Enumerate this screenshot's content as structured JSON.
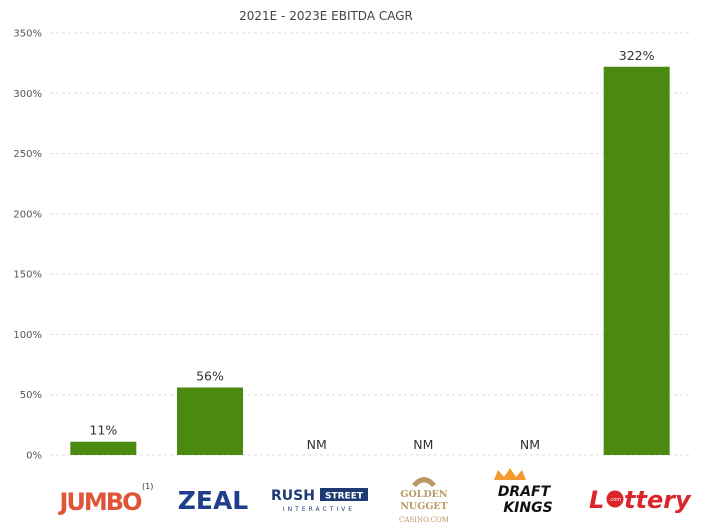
{
  "chart_data": {
    "type": "bar",
    "title": "2021E - 2023E EBITDA CAGR",
    "categories": [
      "Jumbo",
      "ZEAL",
      "Rush Street Interactive",
      "Golden Nugget Casino.com",
      "DraftKings",
      "Lottery.com"
    ],
    "values": [
      11,
      56,
      null,
      null,
      null,
      322
    ],
    "data_labels": [
      "11%",
      "56%",
      "NM",
      "NM",
      "NM",
      "322%"
    ],
    "ylim": [
      0,
      350
    ],
    "yticks": [
      0,
      50,
      100,
      150,
      200,
      250,
      300,
      350
    ],
    "ytick_labels": [
      "0%",
      "50%",
      "100%",
      "150%",
      "200%",
      "250%",
      "300%",
      "350%"
    ],
    "grid": true,
    "bar_color": "#4a8a10"
  },
  "logos": {
    "jumbo": {
      "text": "JUMBO",
      "footnote": "(1)",
      "color": "#e0553a"
    },
    "zeal": {
      "text": "ZEAL",
      "color": "#1f3f8a"
    },
    "rush": {
      "top_left": "RUSH",
      "top_right": "STREET",
      "bottom": "INTERACTIVE",
      "color": "#1f3a73"
    },
    "golden": {
      "line1": "GOLDEN",
      "line2": "NUGGET",
      "line3": "CASINO.COM",
      "color": "#b99862"
    },
    "draftkings": {
      "line1": "DRAFT",
      "line2": "KINGS",
      "color": "#111111"
    },
    "lottery": {
      "pre": "L",
      "dot_text": ".com",
      "post": "ttery",
      "color": "#d8262a"
    }
  }
}
